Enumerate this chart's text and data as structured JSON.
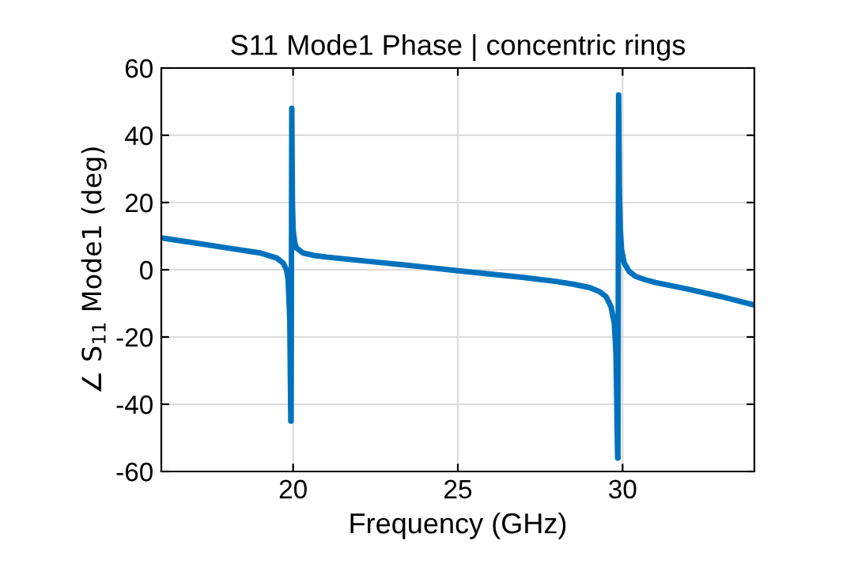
{
  "chart_data": {
    "type": "line",
    "title": "S11 Mode1 Phase | concentric rings",
    "xlabel": "Frequency (GHz)",
    "ylabel": "∠ S$_{11}$ Mode1 (deg)",
    "xlim": [
      16,
      34
    ],
    "ylim": [
      -60,
      60
    ],
    "xticks": [
      20,
      25,
      30
    ],
    "yticks": [
      -60,
      -40,
      -20,
      0,
      20,
      40,
      60
    ],
    "grid": true,
    "legend": false,
    "series": [
      {
        "color": "#0072bd",
        "x": [
          16,
          17,
          18,
          19,
          19.5,
          19.7,
          19.8,
          19.85,
          19.9,
          19.93,
          19.94,
          19.96,
          19.98,
          20.0,
          20.05,
          20.1,
          20.3,
          20.6,
          21,
          22,
          23,
          24,
          25,
          26,
          27,
          28,
          28.5,
          29,
          29.3,
          29.5,
          29.65,
          29.75,
          29.8,
          29.85,
          29.86,
          29.88,
          29.9,
          29.93,
          29.97,
          30.05,
          30.2,
          30.4,
          30.7,
          31,
          32,
          33,
          34
        ],
        "values": [
          9.5,
          8,
          6.5,
          5,
          3.5,
          2,
          0,
          -3,
          -15,
          -45,
          -45,
          48,
          20,
          12,
          8,
          6.5,
          5,
          4.3,
          3.8,
          2.8,
          1.8,
          0.8,
          -0.3,
          -1.3,
          -2.3,
          -3.5,
          -4.3,
          -5.3,
          -6.5,
          -8,
          -11,
          -16,
          -25,
          -56,
          -56,
          52,
          25,
          12,
          6,
          2,
          -0.5,
          -2,
          -3,
          -3.8,
          -5.8,
          -8,
          -10.5
        ]
      }
    ]
  }
}
